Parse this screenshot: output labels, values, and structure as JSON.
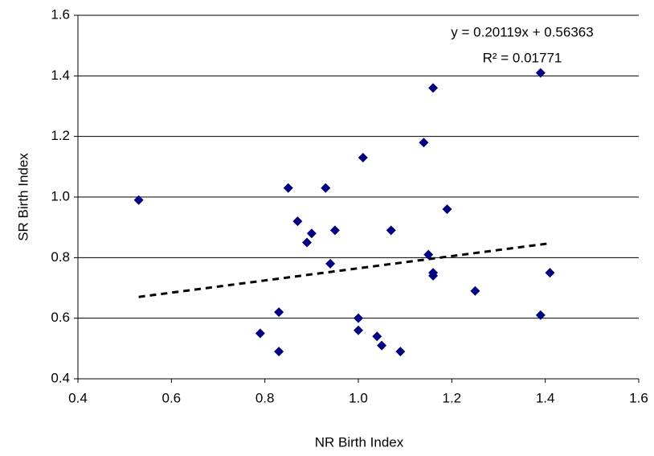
{
  "chart_data": {
    "type": "scatter",
    "x_label": "NR Birth Index",
    "y_label": "SR Birth Index",
    "x": [
      0.53,
      0.85,
      0.87,
      0.9,
      0.89,
      0.93,
      0.95,
      0.94,
      1.01,
      1.07,
      1.14,
      1.16,
      1.19,
      1.15,
      1.16,
      1.16,
      1.25,
      1.39,
      1.39,
      1.41,
      0.83,
      0.79,
      0.83,
      1.0,
      1.0,
      1.04,
      1.05,
      1.09
    ],
    "values": [
      0.99,
      1.03,
      0.92,
      0.88,
      0.85,
      1.03,
      0.89,
      0.78,
      1.13,
      0.89,
      1.18,
      1.36,
      0.96,
      0.81,
      0.75,
      0.74,
      0.69,
      1.41,
      0.61,
      0.75,
      0.62,
      0.55,
      0.49,
      0.6,
      0.56,
      0.54,
      0.51,
      0.49
    ],
    "color": "#000080",
    "trendline": {
      "slope": 0.20119,
      "intercept": 0.56363,
      "equation": "y = 0.20119x + 0.56363",
      "r_squared": "R² = 0.01771"
    },
    "xlim": [
      0.4,
      1.6
    ],
    "xticks": [
      0.4,
      0.6,
      0.8,
      {
        "value": 1.0,
        "label": "1.0"
      },
      1.2,
      1.4,
      1.6
    ],
    "ylim": [
      0.4,
      1.6
    ],
    "yticks": [
      0.4,
      0.6,
      0.8,
      {
        "value": 1.0,
        "label": "1.0"
      },
      1.2,
      1.4,
      1.6
    ],
    "grid": true
  }
}
